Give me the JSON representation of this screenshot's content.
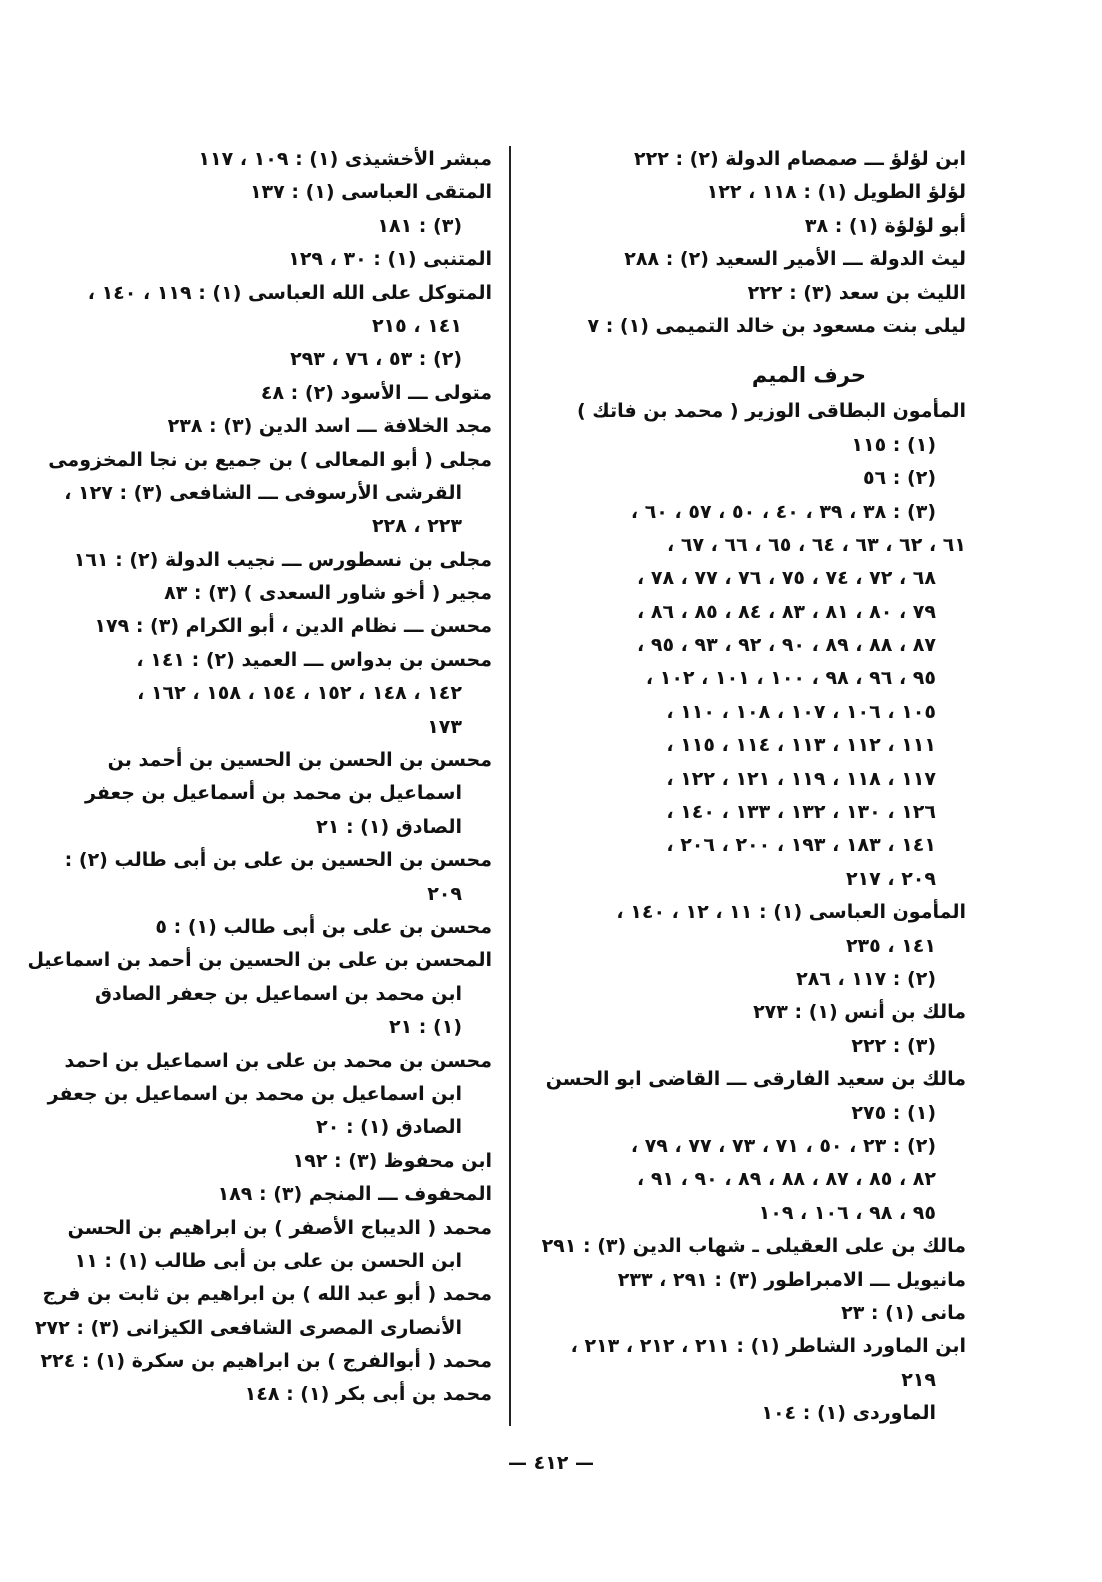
{
  "right_column": [
    {
      "text": "ابن لؤلؤ ـــ صمصام الدولة (٢) : ٢٢٢"
    },
    {
      "text": "لؤلؤ الطويل (١) : ١١٨ ، ١٢٢"
    },
    {
      "text": "أبو لؤلؤة (١) : ٣٨"
    },
    {
      "text": "ليث الدولة ـــ الأمير السعيد (٢) : ٢٨٨"
    },
    {
      "text": "الليث بن سعد (٣) : ٢٢٢"
    },
    {
      "text": "ليلى بنت مسعود بن خالد التميمى (١) : ٧"
    },
    {
      "text": "حرف الميم",
      "heading": true
    },
    {
      "text": "المأمون البطاقى الوزير ( محمد بن فاتك )"
    },
    {
      "text": "(١) : ١١٥",
      "indent": true
    },
    {
      "text": "(٢) : ٥٦",
      "indent": true
    },
    {
      "text": "(٣) : ٣٨ ، ٣٩ ، ٤٠ ، ٥٠ ، ٥٧ ، ٦٠ ،",
      "indent": true
    },
    {
      "text": "٦١ ، ٦٢ ، ٦٣ ، ٦٤ ، ٦٥ ، ٦٦ ، ٦٧ ،"
    },
    {
      "text": "٦٨ ، ٧٢ ، ٧٤ ، ٧٥ ، ٧٦ ، ٧٧ ، ٧٨ ،",
      "indent": true
    },
    {
      "text": "٧٩ ، ٨٠ ، ٨١ ، ٨٣ ، ٨٤ ، ٨٥ ، ٨٦ ،",
      "indent": true
    },
    {
      "text": "٨٧ ، ٨٨ ، ٨٩ ، ٩٠ ، ٩٢ ، ٩٣ ، ٩٥ ،",
      "indent": true
    },
    {
      "text": "٩٥ ، ٩٦ ، ٩٨ ، ١٠٠ ، ١٠١ ، ١٠٢ ،",
      "indent": true
    },
    {
      "text": "١٠٥ ، ١٠٦ ، ١٠٧ ، ١٠٨ ، ١١٠ ،",
      "indent": true
    },
    {
      "text": "١١١ ، ١١٢ ، ١١٣ ، ١١٤ ، ١١٥ ،",
      "indent": true
    },
    {
      "text": "١١٧ ، ١١٨ ، ١١٩ ، ١٢١ ، ١٢٢ ،",
      "indent": true
    },
    {
      "text": "١٢٦ ، ١٣٠ ، ١٣٢ ، ١٣٣ ، ١٤٠ ،",
      "indent": true
    },
    {
      "text": "١٤١ ، ١٨٣ ، ١٩٣ ، ٢٠٠ ، ٢٠٦ ،",
      "indent": true
    },
    {
      "text": "٢٠٩ ، ٢١٧",
      "indent": true
    },
    {
      "text": "المأمون العباسى (١) : ١١ ، ١٢ ، ١٤٠ ،"
    },
    {
      "text": "١٤١ ، ٢٣٥",
      "indent": true
    },
    {
      "text": "(٢) : ١١٧ ، ٢٨٦",
      "indent": true
    },
    {
      "text": "مالك بن أنس (١) : ٢٧٣"
    },
    {
      "text": "(٣) : ٢٢٢",
      "indent": true
    },
    {
      "text": "مالك بن سعيد الفارقى ـــ القاضى ابو الحسن"
    },
    {
      "text": "(١) : ٢٧٥",
      "indent": true
    },
    {
      "text": "(٢) : ٢٣ ، ٥٠ ، ٧١ ، ٧٣ ، ٧٧ ، ٧٩ ،",
      "indent": true
    },
    {
      "text": "٨٢ ، ٨٥ ، ٨٧ ، ٨٨ ، ٨٩ ، ٩٠ ، ٩١ ،",
      "indent": true
    },
    {
      "text": "٩٥ ، ٩٨ ، ١٠٦ ، ١٠٩",
      "indent": true
    },
    {
      "text": "مالك بن على العقيلى ـ شهاب الدين (٣) : ٢٩١"
    },
    {
      "text": "مانيويل ـــ الامبراطور (٣) : ٢٩١ ، ٢٣٣"
    },
    {
      "text": "مانى (١) : ٢٣"
    },
    {
      "text": "ابن الماورد الشاطر (١) : ٢١١ ، ٢١٢ ، ٢١٣ ،"
    },
    {
      "text": "٢١٩",
      "indent": true
    },
    {
      "text": "الماوردى (١) : ١٠٤",
      "indent": true
    }
  ],
  "left_column": [
    {
      "text": "مبشر الأخشيذى (١) : ١٠٩ ، ١١٧"
    },
    {
      "text": "المتقى العباسى (١) : ١٣٧"
    },
    {
      "text": "(٣) : ١٨١",
      "indent": true
    },
    {
      "text": "المتنبى (١) : ٣٠ ، ١٢٩"
    },
    {
      "text": "المتوكل على الله العباسى (١) : ١١٩ ، ١٤٠ ،"
    },
    {
      "text": "١٤١ ، ٢١٥",
      "indent": true
    },
    {
      "text": "(٢) : ٥٣ ، ٧٦ ، ٢٩٣",
      "indent": true
    },
    {
      "text": "متولى ـــ الأسود (٢) : ٤٨"
    },
    {
      "text": "مجد الخلافة ـــ اسد الدين (٣) : ٢٣٨"
    },
    {
      "text": "مجلى ( أبو المعالى ) بن جميع بن نجا المخزومى"
    },
    {
      "text": "القرشى الأرسوفى ـــ الشافعى (٣) : ١٢٧ ،",
      "indent": true
    },
    {
      "text": "٢٢٣ ، ٢٢٨",
      "indent": true
    },
    {
      "text": "مجلى بن نسطورس ـــ نجيب الدولة (٢) : ١٦١"
    },
    {
      "text": "مجير ( أخو شاور السعدى ) (٣) : ٨٣"
    },
    {
      "text": "محسن ـــ نظام الدين ، أبو الكرام (٣) : ١٧٩"
    },
    {
      "text": "محسن بن بدواس ـــ العميد (٢) : ١٤١ ،"
    },
    {
      "text": "١٤٢ ، ١٤٨ ، ١٥٢ ، ١٥٤ ، ١٥٨ ، ١٦٢ ،",
      "indent": true
    },
    {
      "text": "١٧٣",
      "indent": true
    },
    {
      "text": "محسن بن الحسن بن الحسين بن أحمد بن"
    },
    {
      "text": "اسماعيل بن محمد بن أسماعيل بن جعفر",
      "indent": true
    },
    {
      "text": "الصادق (١) : ٢١",
      "indent": true
    },
    {
      "text": "محسن بن الحسين بن على بن أبى طالب (٢) :"
    },
    {
      "text": "٢٠٩",
      "indent": true
    },
    {
      "text": "محسن بن على بن أبى طالب (١) : ٥"
    },
    {
      "text": "المحسن بن على بن الحسين بن أحمد بن اسماعيل"
    },
    {
      "text": "ابن محمد بن اسماعيل بن جعفر الصادق",
      "indent": true
    },
    {
      "text": "(١) : ٢١",
      "indent": true
    },
    {
      "text": "محسن بن محمد بن على بن اسماعيل بن احمد"
    },
    {
      "text": "ابن اسماعيل بن محمد بن اسماعيل بن جعفر",
      "indent": true
    },
    {
      "text": "الصادق (١) : ٢٠",
      "indent": true
    },
    {
      "text": "ابن محفوظ (٣) : ١٩٢"
    },
    {
      "text": "المحفوف ـــ المنجم (٣) : ١٨٩"
    },
    {
      "text": "محمد ( الديباج الأصفر ) بن ابراهيم بن الحسن"
    },
    {
      "text": "ابن الحسن بن على بن أبى طالب (١) : ١١",
      "indent": true
    },
    {
      "text": "محمد ( أبو عبد الله ) بن ابراهيم بن ثابت بن فرج"
    },
    {
      "text": "الأنصارى المصرى الشافعى الكيزانى (٣) : ٢٧٢",
      "indent": true
    },
    {
      "text": "محمد ( أبوالفرج ) بن ابراهيم بن سكرة (١) : ٢٢٤"
    },
    {
      "text": "محمد بن أبى بكر (١) : ١٤٨"
    }
  ],
  "footer": {
    "page_number": "— ٤١٢ —"
  }
}
